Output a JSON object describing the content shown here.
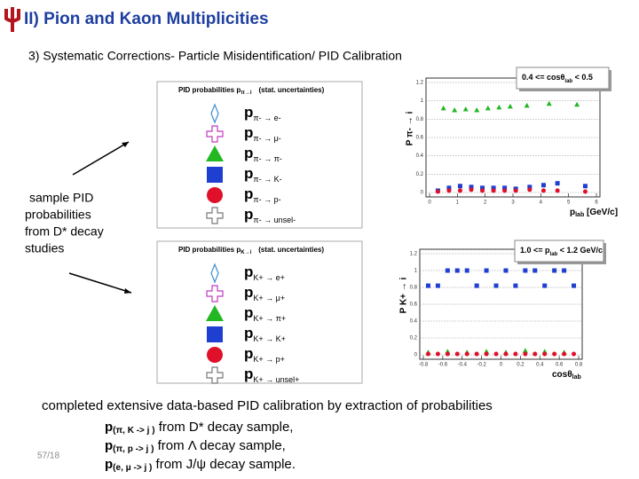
{
  "header": {
    "title": "II) Pion and Kaon Multiplicities",
    "subtitle": "3) Systematic Corrections- Particle Misidentification/ PID Calibration"
  },
  "side_note": {
    "lines": [
      "sample PID",
      "probabilities",
      "from D* decay",
      "studies"
    ]
  },
  "legend1": {
    "title": "PID probabilities p",
    "title_sub": "π→i",
    "title_rest": "(stat. uncertainties)",
    "prefix": "p",
    "entries": [
      "π- → e-",
      "π- → μ-",
      "π- → π-",
      "π- → K-",
      "π- → p-",
      "π- → unsel-"
    ]
  },
  "legend2": {
    "title": "PID probabilities p",
    "title_sub": "K→i",
    "title_rest": "(stat. uncertainties)",
    "prefix": "p",
    "entries": [
      "K+ → e+",
      "K+ → μ+",
      "K+ → π+",
      "K+ → K+",
      "K+ → p+",
      "K+ → unsel+"
    ]
  },
  "plot1": {
    "range_label": "0.4 <= cosθ",
    "range_sub": "lab",
    "range_rest": " < 0.5",
    "y_label": "P π- → i",
    "x_label": "p",
    "x_label_sub": "lab",
    "x_label_rest": " [GeV/c]",
    "xlim": [
      0,
      6
    ],
    "xticks": [
      0,
      1,
      2,
      3,
      4,
      5,
      6
    ],
    "ylim": [
      0,
      1.2
    ],
    "yticks": [
      0,
      0.2,
      0.4,
      0.6,
      0.8,
      1,
      1.2
    ],
    "series": [
      {
        "color": "#22b822",
        "marker": "triangle",
        "x": [
          0.5,
          0.9,
          1.3,
          1.7,
          2.1,
          2.5,
          2.9,
          3.5,
          4.3,
          5.3
        ],
        "y": [
          0.92,
          0.9,
          0.91,
          0.9,
          0.92,
          0.93,
          0.94,
          0.95,
          0.97,
          0.96
        ]
      },
      {
        "color": "#1f3fd0",
        "marker": "square",
        "x": [
          0.3,
          0.7,
          1.1,
          1.5,
          1.9,
          2.3,
          2.7,
          3.1,
          3.6,
          4.1,
          4.6,
          5.6
        ],
        "y": [
          0.02,
          0.05,
          0.07,
          0.06,
          0.05,
          0.05,
          0.05,
          0.04,
          0.06,
          0.08,
          0.1,
          0.07
        ]
      },
      {
        "color": "#e0102a",
        "marker": "circle",
        "x": [
          0.3,
          0.7,
          1.1,
          1.5,
          1.9,
          2.3,
          2.7,
          3.1,
          3.6,
          4.1,
          4.6,
          5.6
        ],
        "y": [
          0.01,
          0.02,
          0.02,
          0.03,
          0.02,
          0.02,
          0.02,
          0.02,
          0.03,
          0.02,
          0.02,
          0.01
        ]
      }
    ]
  },
  "plot2": {
    "range_label": "1.0 <= p",
    "range_sub": "lab",
    "range_rest": " < 1.2 GeV/c",
    "y_label": "P K+ → i",
    "x_label": "cosθ",
    "x_label_sub": "lab",
    "x_label_rest": "",
    "xlim": [
      -0.8,
      0.8
    ],
    "xticks": [
      -0.8,
      -0.6,
      -0.4,
      -0.2,
      0,
      0.2,
      0.4,
      0.6,
      0.8
    ],
    "ylim": [
      0,
      1.2
    ],
    "yticks": [
      0,
      0.2,
      0.4,
      0.6,
      0.8,
      1,
      1.2
    ],
    "series": [
      {
        "color": "#1f3fd0",
        "marker": "square",
        "x": [
          -0.75,
          -0.65,
          -0.55,
          -0.45,
          -0.35,
          -0.25,
          -0.15,
          -0.05,
          0.05,
          0.15,
          0.25,
          0.35,
          0.45,
          0.55,
          0.65,
          0.75
        ],
        "y": [
          0.82,
          0.82,
          1.0,
          1.0,
          1.0,
          0.82,
          1.0,
          0.82,
          1.0,
          0.82,
          1.0,
          1.0,
          0.82,
          1.0,
          1.0,
          0.82
        ]
      },
      {
        "color": "#22b822",
        "marker": "triangle",
        "x": [
          -0.75,
          -0.55,
          -0.35,
          -0.15,
          0.05,
          0.25,
          0.45,
          0.65
        ],
        "y": [
          0.03,
          0.04,
          0.03,
          0.04,
          0.03,
          0.05,
          0.04,
          0.03
        ]
      },
      {
        "color": "#e0102a",
        "marker": "circle",
        "x": [
          -0.75,
          -0.65,
          -0.55,
          -0.45,
          -0.35,
          -0.25,
          -0.15,
          -0.05,
          0.05,
          0.15,
          0.25,
          0.35,
          0.45,
          0.55,
          0.65,
          0.75
        ],
        "y": [
          0.01,
          0.01,
          0.01,
          0.01,
          0.01,
          0.01,
          0.01,
          0.01,
          0.01,
          0.01,
          0.01,
          0.01,
          0.01,
          0.01,
          0.01,
          0.01
        ]
      }
    ]
  },
  "footer": {
    "summary": "completed extensive data-based PID calibration by extraction of probabilities",
    "lines": [
      {
        "p": "p",
        "sub": "(π, K -> j )",
        "rest": " from D* decay sample,"
      },
      {
        "p": "p",
        "sub": "(π, p -> j )",
        "rest": " from Λ decay sample,"
      },
      {
        "p": "p",
        "sub": "(e, μ -> j )",
        "rest": " from J/ψ decay sample."
      }
    ],
    "page_number": "57/18"
  }
}
